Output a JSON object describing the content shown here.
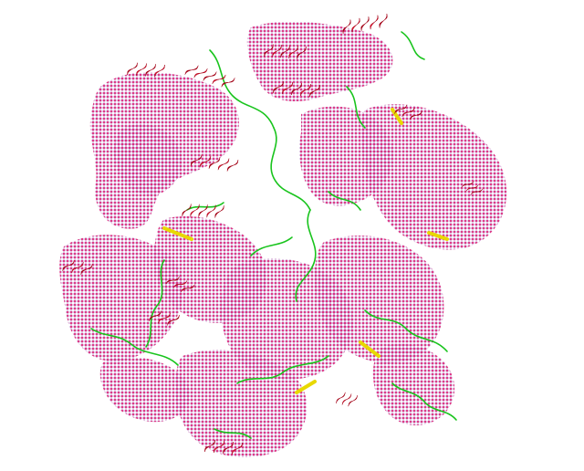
{
  "image": {
    "subject": "protein-structure-cartoon",
    "render_style": "ribbon-cartoon-with-dot-surface",
    "background": "#ffffff"
  },
  "colors": {
    "helix": "#e8102e",
    "helix_dark": "#a30015",
    "dot_surface": "#f2357a",
    "dot_outline": "#7a1a9a",
    "loop": "#19c41d",
    "strand": "#e8d800"
  }
}
